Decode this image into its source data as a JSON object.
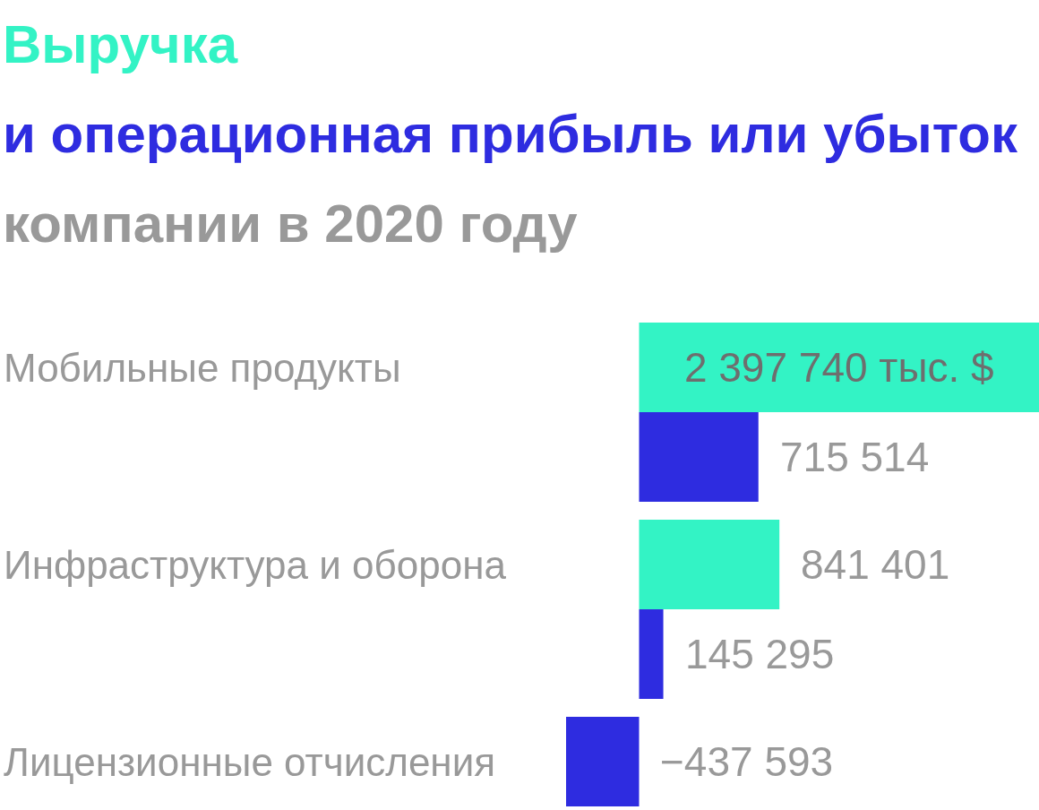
{
  "chart_data": {
    "type": "bar",
    "orientation": "horizontal",
    "title": "компании в 2020 году",
    "legend": "top",
    "tick_labels": "y",
    "categories": [
      "Мобильные продукты",
      "Инфраструктура и оборона",
      "Лицензионные отчисления"
    ],
    "series": [
      {
        "name": "Выручка",
        "color": "#33f3c5",
        "values": [
          2397740,
          841401,
          null
        ],
        "value_labels": [
          "2 397 740 тыс. $",
          "841 401",
          null
        ]
      },
      {
        "name": "и операционная прибыль или убыток",
        "color": "#2e2ce0",
        "values": [
          715514,
          145295,
          -437593
        ],
        "value_labels": [
          "715 514",
          "145 295",
          "−437 593"
        ]
      }
    ]
  }
}
